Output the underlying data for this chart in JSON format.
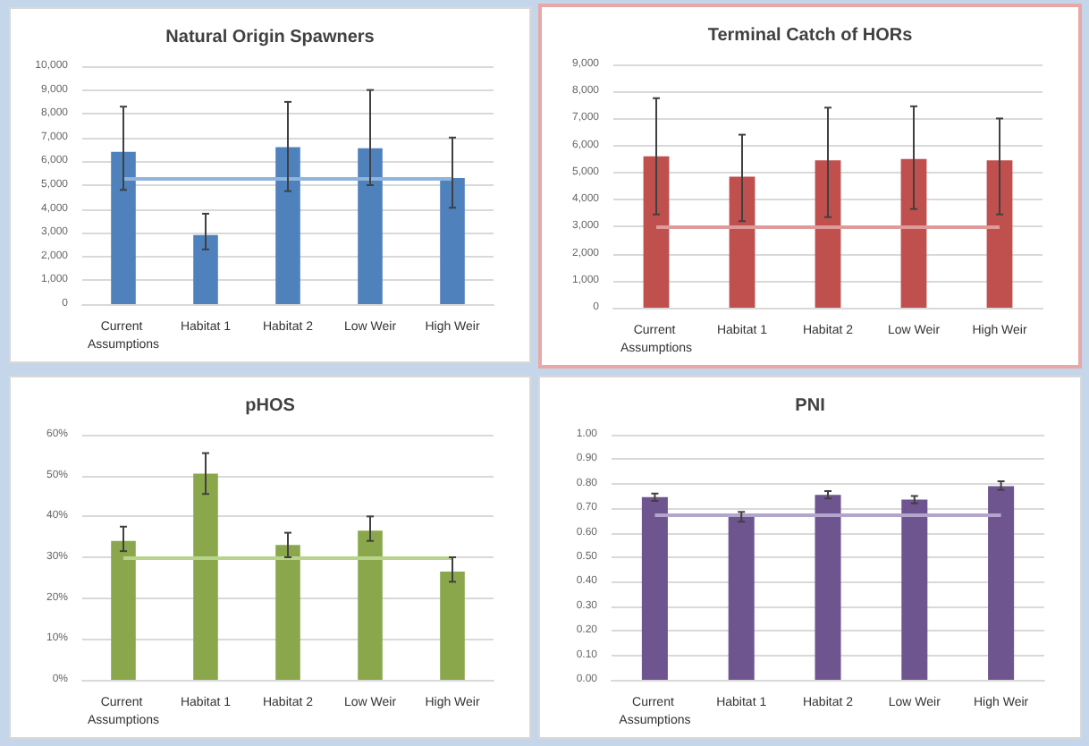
{
  "chart_data": [
    {
      "type": "bar",
      "title": "Natural Origin Spawners",
      "categories": [
        "Current Assumptions",
        "Habitat 1",
        "Habitat 2",
        "Low Weir",
        "High Weir"
      ],
      "values": [
        6400,
        2900,
        6600,
        6550,
        5300
      ],
      "color": "#4f81bd",
      "errors": [
        [
          4800,
          8300
        ],
        [
          2300,
          3800
        ],
        [
          4750,
          8500
        ],
        [
          5000,
          9000
        ],
        [
          4050,
          7000
        ]
      ],
      "ylim": [
        0,
        10000
      ],
      "yticks": [
        0,
        {
          "value": 1000,
          "label": "1,000"
        },
        {
          "value": 2000,
          "label": "2,000"
        },
        {
          "value": 3000,
          "label": "3,000"
        },
        {
          "value": 4000,
          "label": "4,000"
        },
        {
          "value": 5000,
          "label": "5,000"
        },
        {
          "value": 6000,
          "label": "6,000"
        },
        {
          "value": 7000,
          "label": "7,000"
        },
        {
          "value": 8000,
          "label": "8,000"
        },
        {
          "value": 9000,
          "label": "9,000"
        },
        {
          "value": 10000,
          "label": "10,000"
        }
      ],
      "ref_lines": [
        {
          "axis": "y",
          "value": 5250,
          "color": "#8fb4dd"
        }
      ],
      "grid": "y"
    },
    {
      "type": "bar",
      "title": "Terminal Catch of HORs",
      "categories": [
        "Current Assumptions",
        "Habitat 1",
        "Habitat 2",
        "Low Weir",
        "High Weir"
      ],
      "values": [
        5600,
        4850,
        5450,
        5500,
        5450
      ],
      "color": "#c0504d",
      "errors": [
        [
          3450,
          7750
        ],
        [
          3200,
          6400
        ],
        [
          3350,
          7400
        ],
        [
          3650,
          7450
        ],
        [
          3450,
          7000
        ]
      ],
      "ylim": [
        0,
        9000
      ],
      "yticks": [
        0,
        {
          "value": 1000,
          "label": "1,000"
        },
        {
          "value": 2000,
          "label": "2,000"
        },
        {
          "value": 3000,
          "label": "3,000"
        },
        {
          "value": 4000,
          "label": "4,000"
        },
        {
          "value": 5000,
          "label": "5,000"
        },
        {
          "value": 6000,
          "label": "6,000"
        },
        {
          "value": 7000,
          "label": "7,000"
        },
        {
          "value": 8000,
          "label": "8,000"
        },
        {
          "value": 9000,
          "label": "9,000"
        }
      ],
      "ref_lines": [
        {
          "axis": "y",
          "value": 3000,
          "color": "#e09a9a"
        }
      ],
      "grid": "y"
    },
    {
      "type": "bar",
      "title": "pHOS",
      "categories": [
        "Current Assumptions",
        "Habitat 1",
        "Habitat 2",
        "Low Weir",
        "High Weir"
      ],
      "values": [
        34,
        50.5,
        33,
        36.5,
        26.5
      ],
      "color": "#8aa84b",
      "errors": [
        [
          31.5,
          37.5
        ],
        [
          45.5,
          55.5
        ],
        [
          30,
          36
        ],
        [
          34,
          40
        ],
        [
          24,
          30
        ]
      ],
      "ylim": [
        0,
        60
      ],
      "yticks": [
        {
          "value": 0,
          "label": "0%"
        },
        {
          "value": 10,
          "label": "10%"
        },
        {
          "value": 20,
          "label": "20%"
        },
        {
          "value": 30,
          "label": "30%"
        },
        {
          "value": 40,
          "label": "40%"
        },
        {
          "value": 50,
          "label": "50%"
        },
        {
          "value": 60,
          "label": "60%"
        }
      ],
      "ref_lines": [
        {
          "axis": "y",
          "value": 30,
          "color": "#b8d38c"
        }
      ],
      "grid": "y"
    },
    {
      "type": "bar",
      "title": "PNI",
      "categories": [
        "Current Assumptions",
        "Habitat 1",
        "Habitat 2",
        "Low Weir",
        "High Weir"
      ],
      "values": [
        0.745,
        0.665,
        0.755,
        0.735,
        0.79
      ],
      "color": "#6f5590",
      "errors": [
        [
          0.73,
          0.76
        ],
        [
          0.645,
          0.685
        ],
        [
          0.74,
          0.77
        ],
        [
          0.72,
          0.75
        ],
        [
          0.775,
          0.81
        ]
      ],
      "ylim": [
        0,
        1
      ],
      "yticks": [
        {
          "value": 0,
          "label": "0.00"
        },
        {
          "value": 0.1,
          "label": "0.10"
        },
        {
          "value": 0.2,
          "label": "0.20"
        },
        {
          "value": 0.3,
          "label": "0.30"
        },
        {
          "value": 0.4,
          "label": "0.40"
        },
        {
          "value": 0.5,
          "label": "0.50"
        },
        {
          "value": 0.6,
          "label": "0.60"
        },
        {
          "value": 0.7,
          "label": "0.70"
        },
        {
          "value": 0.8,
          "label": "0.80"
        },
        {
          "value": 0.9,
          "label": "0.90"
        },
        {
          "value": 1,
          "label": "1.00"
        }
      ],
      "ref_lines": [
        {
          "axis": "y",
          "value": 0.67,
          "color": "#b3a5cc"
        }
      ],
      "grid": "y"
    }
  ]
}
